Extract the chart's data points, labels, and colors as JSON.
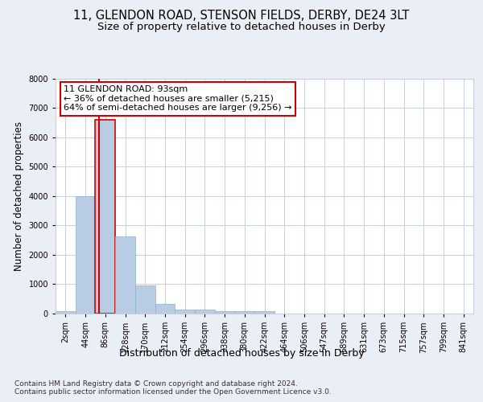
{
  "title1": "11, GLENDON ROAD, STENSON FIELDS, DERBY, DE24 3LT",
  "title2": "Size of property relative to detached houses in Derby",
  "xlabel": "Distribution of detached houses by size in Derby",
  "ylabel": "Number of detached properties",
  "footer": "Contains HM Land Registry data © Crown copyright and database right 2024.\nContains public sector information licensed under the Open Government Licence v3.0.",
  "bin_labels": [
    "2sqm",
    "44sqm",
    "86sqm",
    "128sqm",
    "170sqm",
    "212sqm",
    "254sqm",
    "296sqm",
    "338sqm",
    "380sqm",
    "422sqm",
    "464sqm",
    "506sqm",
    "547sqm",
    "589sqm",
    "631sqm",
    "673sqm",
    "715sqm",
    "757sqm",
    "799sqm",
    "841sqm"
  ],
  "bar_values": [
    70,
    4000,
    6600,
    2620,
    950,
    330,
    130,
    130,
    80,
    70,
    70,
    0,
    0,
    0,
    0,
    0,
    0,
    0,
    0,
    0,
    0
  ],
  "bar_color": "#b8cce4",
  "bar_edge_color": "#8bafd4",
  "highlight_bar_index": 2,
  "highlight_color": "#cc0000",
  "annotation_text": "11 GLENDON ROAD: 93sqm\n← 36% of detached houses are smaller (5,215)\n64% of semi-detached houses are larger (9,256) →",
  "annotation_box_color": "#cc0000",
  "ylim": [
    0,
    8000
  ],
  "yticks": [
    0,
    1000,
    2000,
    3000,
    4000,
    5000,
    6000,
    7000,
    8000
  ],
  "bg_color": "#eaeef5",
  "plot_bg_color": "#ffffff",
  "grid_color": "#c8d0de",
  "title1_fontsize": 10.5,
  "title2_fontsize": 9.5,
  "tick_fontsize": 7,
  "ylabel_fontsize": 8.5,
  "xlabel_fontsize": 9,
  "footer_fontsize": 6.5,
  "annot_fontsize": 8
}
